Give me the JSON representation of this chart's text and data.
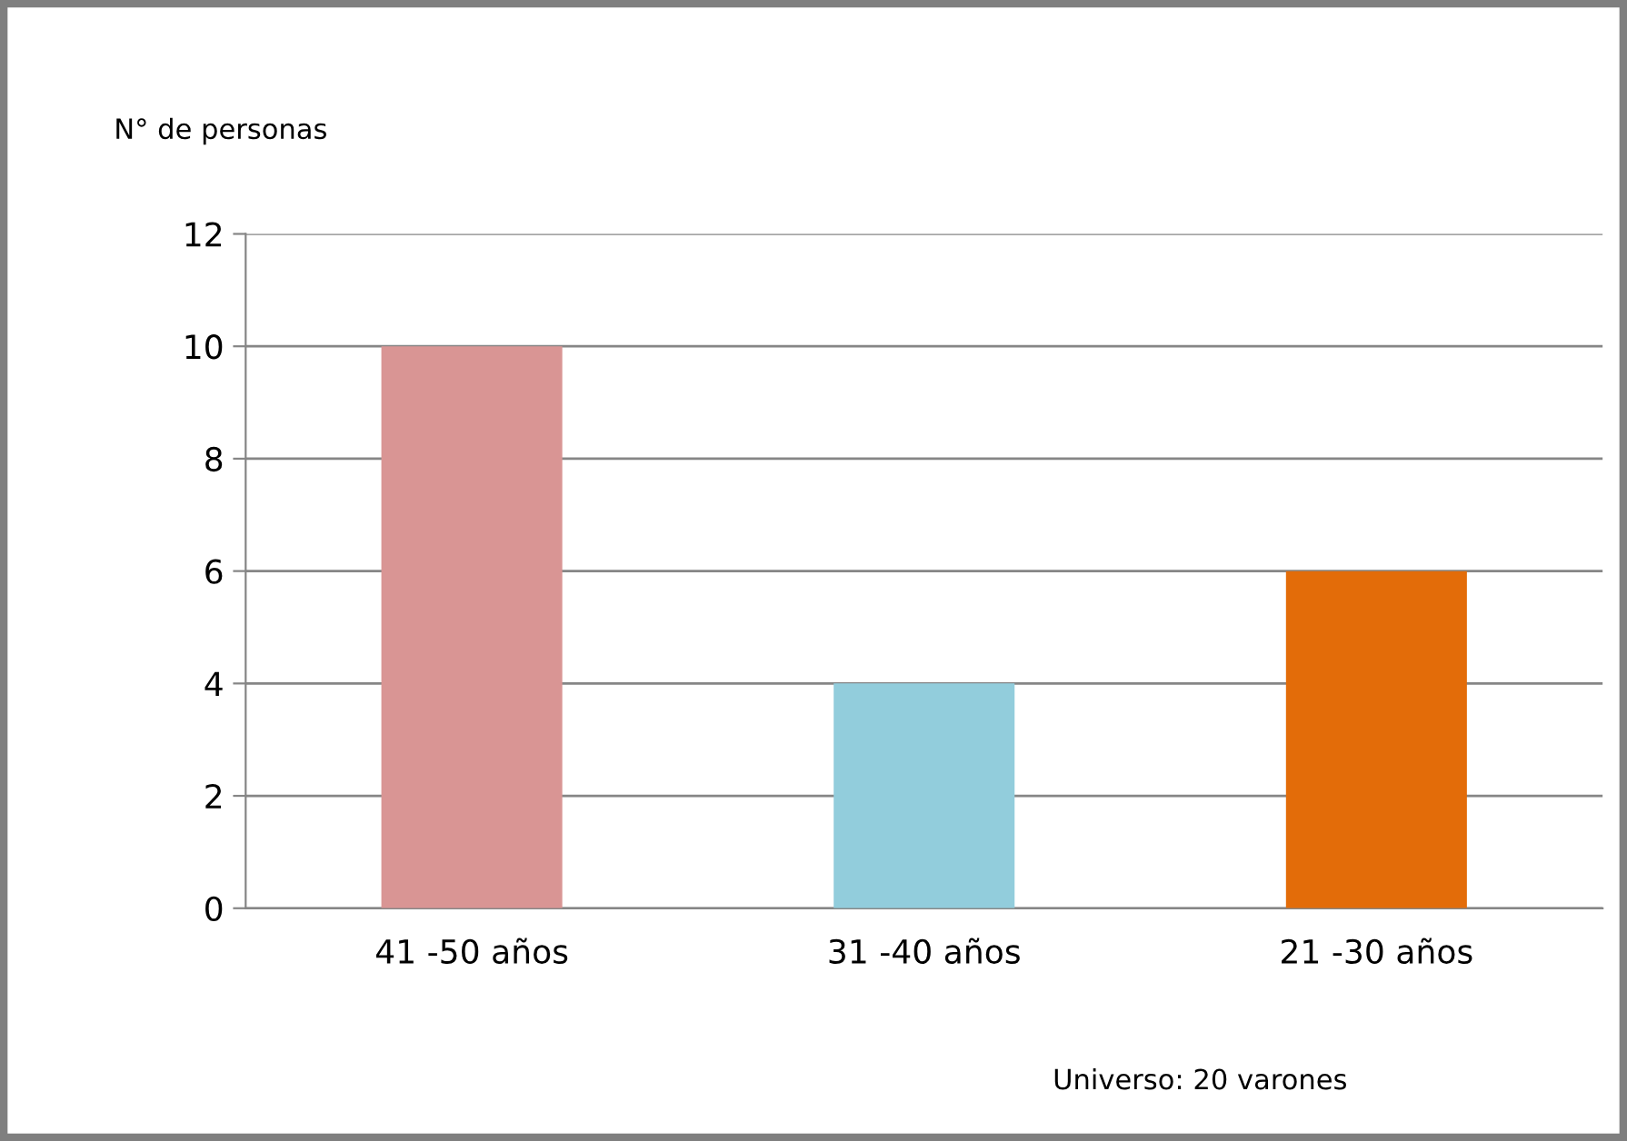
{
  "chart_data": {
    "type": "bar",
    "ylabel": "N° de personas",
    "categories": [
      "41 -50 años",
      "31 -40 años",
      "21 -30 años"
    ],
    "values": [
      10,
      4,
      6
    ],
    "colors": [
      "#d99594",
      "#92cddc",
      "#e36c09"
    ],
    "ylim": [
      0,
      12
    ],
    "yticks": [
      0,
      2,
      4,
      6,
      8,
      10,
      12
    ],
    "grid": "y",
    "annotations": [
      "Universo: 20 varones"
    ]
  }
}
